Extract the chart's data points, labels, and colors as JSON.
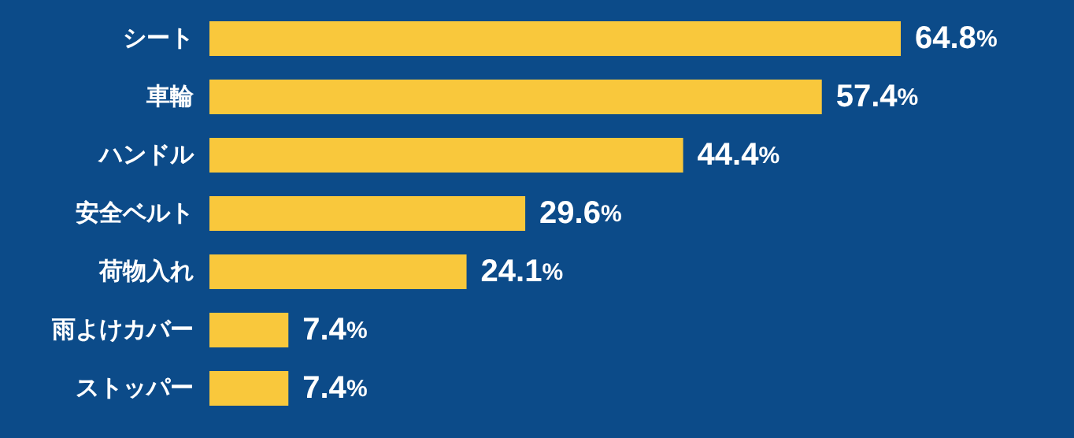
{
  "chart_data": {
    "type": "bar",
    "orientation": "horizontal",
    "categories": [
      "シート",
      "車輪",
      "ハンドル",
      "安全ベルト",
      "荷物入れ",
      "雨よけカバー",
      "ストッパー"
    ],
    "values": [
      64.8,
      57.4,
      44.4,
      29.6,
      24.1,
      7.4,
      7.4
    ],
    "value_labels": [
      "64.8%",
      "57.4%",
      "44.4%",
      "29.6%",
      "24.1%",
      "7.4%",
      "7.4%"
    ],
    "color": "#f9c83c"
  }
}
